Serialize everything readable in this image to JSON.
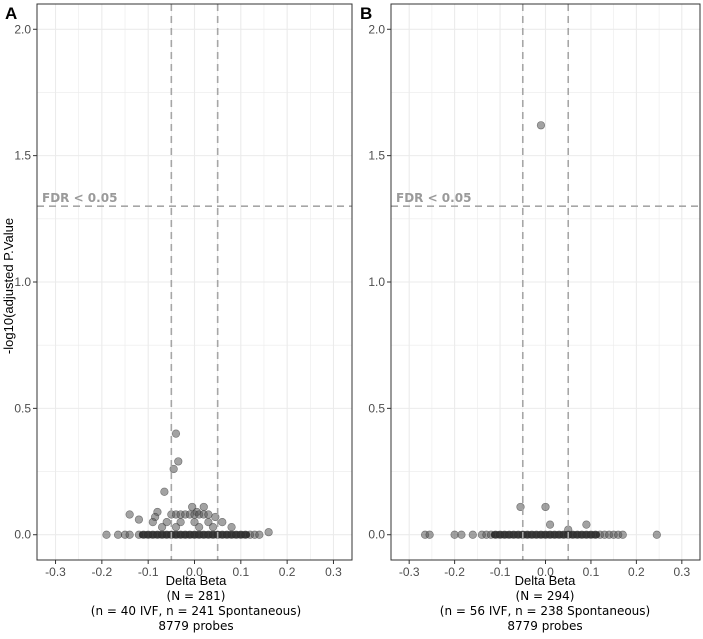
{
  "chart_data": [
    {
      "panel": "A",
      "type": "scatter",
      "xlabel": "Delta Beta",
      "ylabel": "-log10(adjusted P.Value",
      "xlim": [
        -0.34,
        0.34
      ],
      "ylim": [
        -0.1,
        2.1
      ],
      "x_ticks": [
        -0.3,
        -0.2,
        -0.1,
        0.0,
        0.1,
        0.2,
        0.3
      ],
      "x_tick_labels": [
        "-0.3",
        "-0.2",
        "-0.1",
        "0.0",
        "0.1",
        "0.2",
        "0.3"
      ],
      "y_ticks": [
        0.0,
        0.5,
        1.0,
        1.5,
        2.0
      ],
      "y_tick_labels": [
        "0.0",
        "0.5",
        "1.0",
        "1.5",
        "2.0"
      ],
      "fdr_threshold": 1.3,
      "fdr_label": "FDR < 0.05",
      "vlines": [
        -0.05,
        0.05
      ],
      "grid": true,
      "caption": [
        "(N = 281)",
        "(n = 40 IVF, n = 241 Spontaneous)",
        "8779 probes"
      ],
      "points": [
        {
          "x": -0.04,
          "y": 0.4
        },
        {
          "x": -0.035,
          "y": 0.29
        },
        {
          "x": -0.045,
          "y": 0.26
        },
        {
          "x": -0.065,
          "y": 0.17
        },
        {
          "x": -0.005,
          "y": 0.11
        },
        {
          "x": 0.02,
          "y": 0.11
        },
        {
          "x": -0.08,
          "y": 0.09
        },
        {
          "x": 0.005,
          "y": 0.09
        },
        {
          "x": -0.14,
          "y": 0.08
        },
        {
          "x": -0.12,
          "y": 0.06
        },
        {
          "x": -0.085,
          "y": 0.07
        },
        {
          "x": 0.045,
          "y": 0.07
        },
        {
          "x": -0.05,
          "y": 0.08
        },
        {
          "x": -0.04,
          "y": 0.08
        },
        {
          "x": -0.03,
          "y": 0.08
        },
        {
          "x": -0.02,
          "y": 0.08
        },
        {
          "x": -0.01,
          "y": 0.08
        },
        {
          "x": 0.0,
          "y": 0.08
        },
        {
          "x": 0.01,
          "y": 0.08
        },
        {
          "x": 0.02,
          "y": 0.08
        },
        {
          "x": 0.03,
          "y": 0.08
        },
        {
          "x": -0.09,
          "y": 0.05
        },
        {
          "x": -0.06,
          "y": 0.05
        },
        {
          "x": -0.03,
          "y": 0.05
        },
        {
          "x": 0.0,
          "y": 0.05
        },
        {
          "x": 0.03,
          "y": 0.05
        },
        {
          "x": 0.06,
          "y": 0.05
        },
        {
          "x": -0.07,
          "y": 0.03
        },
        {
          "x": -0.04,
          "y": 0.03
        },
        {
          "x": 0.01,
          "y": 0.03
        },
        {
          "x": 0.04,
          "y": 0.03
        },
        {
          "x": 0.08,
          "y": 0.03
        },
        {
          "x": -0.19,
          "y": 0.0
        },
        {
          "x": -0.165,
          "y": 0.0
        },
        {
          "x": -0.15,
          "y": 0.0
        },
        {
          "x": -0.14,
          "y": 0.0
        },
        {
          "x": -0.12,
          "y": 0.0
        },
        {
          "x": -0.11,
          "y": 0.0
        },
        {
          "x": -0.1,
          "y": 0.0
        },
        {
          "x": -0.09,
          "y": 0.0
        },
        {
          "x": -0.08,
          "y": 0.0
        },
        {
          "x": -0.07,
          "y": 0.0
        },
        {
          "x": -0.06,
          "y": 0.0
        },
        {
          "x": -0.05,
          "y": 0.0
        },
        {
          "x": -0.04,
          "y": 0.0
        },
        {
          "x": -0.03,
          "y": 0.0
        },
        {
          "x": -0.02,
          "y": 0.0
        },
        {
          "x": -0.01,
          "y": 0.0
        },
        {
          "x": 0.0,
          "y": 0.0
        },
        {
          "x": 0.01,
          "y": 0.0
        },
        {
          "x": 0.02,
          "y": 0.0
        },
        {
          "x": 0.03,
          "y": 0.0
        },
        {
          "x": 0.04,
          "y": 0.0
        },
        {
          "x": 0.05,
          "y": 0.0
        },
        {
          "x": 0.06,
          "y": 0.0
        },
        {
          "x": 0.07,
          "y": 0.0
        },
        {
          "x": 0.08,
          "y": 0.0
        },
        {
          "x": 0.09,
          "y": 0.0
        },
        {
          "x": 0.1,
          "y": 0.0
        },
        {
          "x": 0.11,
          "y": 0.0
        },
        {
          "x": 0.12,
          "y": 0.0
        },
        {
          "x": 0.13,
          "y": 0.0
        },
        {
          "x": 0.14,
          "y": 0.0
        },
        {
          "x": 0.16,
          "y": 0.01
        }
      ]
    },
    {
      "panel": "B",
      "type": "scatter",
      "xlabel": "Delta Beta",
      "ylabel": "",
      "xlim": [
        -0.34,
        0.34
      ],
      "ylim": [
        -0.1,
        2.1
      ],
      "x_ticks": [
        -0.3,
        -0.2,
        -0.1,
        0.0,
        0.1,
        0.2,
        0.3
      ],
      "x_tick_labels": [
        "-0.3",
        "-0.2",
        "-0.1",
        "0.0",
        "0.1",
        "0.2",
        "0.3"
      ],
      "y_ticks": [
        0.0,
        0.5,
        1.0,
        1.5,
        2.0
      ],
      "y_tick_labels": [
        "0.0",
        "0.5",
        "1.0",
        "1.5",
        "2.0"
      ],
      "fdr_threshold": 1.3,
      "fdr_label": "FDR < 0.05",
      "vlines": [
        -0.05,
        0.05
      ],
      "grid": true,
      "caption": [
        "(N = 294)",
        "(n = 56 IVF, n = 238 Spontaneous)",
        "8779 probes"
      ],
      "points": [
        {
          "x": -0.01,
          "y": 1.62
        },
        {
          "x": -0.055,
          "y": 0.11
        },
        {
          "x": 0.0,
          "y": 0.11
        },
        {
          "x": 0.01,
          "y": 0.04
        },
        {
          "x": 0.09,
          "y": 0.04
        },
        {
          "x": 0.05,
          "y": 0.02
        },
        {
          "x": -0.265,
          "y": 0.0
        },
        {
          "x": -0.255,
          "y": 0.0
        },
        {
          "x": -0.2,
          "y": 0.0
        },
        {
          "x": -0.185,
          "y": 0.0
        },
        {
          "x": -0.16,
          "y": 0.0
        },
        {
          "x": -0.14,
          "y": 0.0
        },
        {
          "x": -0.13,
          "y": 0.0
        },
        {
          "x": -0.12,
          "y": 0.0
        },
        {
          "x": -0.11,
          "y": 0.0
        },
        {
          "x": -0.1,
          "y": 0.0
        },
        {
          "x": -0.09,
          "y": 0.0
        },
        {
          "x": -0.08,
          "y": 0.0
        },
        {
          "x": -0.07,
          "y": 0.0
        },
        {
          "x": -0.06,
          "y": 0.0
        },
        {
          "x": -0.05,
          "y": 0.0
        },
        {
          "x": -0.04,
          "y": 0.0
        },
        {
          "x": -0.03,
          "y": 0.0
        },
        {
          "x": -0.02,
          "y": 0.0
        },
        {
          "x": -0.01,
          "y": 0.0
        },
        {
          "x": 0.0,
          "y": 0.0
        },
        {
          "x": 0.01,
          "y": 0.0
        },
        {
          "x": 0.02,
          "y": 0.0
        },
        {
          "x": 0.03,
          "y": 0.0
        },
        {
          "x": 0.04,
          "y": 0.0
        },
        {
          "x": 0.05,
          "y": 0.0
        },
        {
          "x": 0.06,
          "y": 0.0
        },
        {
          "x": 0.07,
          "y": 0.0
        },
        {
          "x": 0.08,
          "y": 0.0
        },
        {
          "x": 0.09,
          "y": 0.0
        },
        {
          "x": 0.1,
          "y": 0.0
        },
        {
          "x": 0.11,
          "y": 0.0
        },
        {
          "x": 0.12,
          "y": 0.0
        },
        {
          "x": 0.13,
          "y": 0.0
        },
        {
          "x": 0.14,
          "y": 0.0
        },
        {
          "x": 0.15,
          "y": 0.0
        },
        {
          "x": 0.16,
          "y": 0.0
        },
        {
          "x": 0.17,
          "y": 0.0
        },
        {
          "x": 0.245,
          "y": 0.0
        }
      ]
    }
  ],
  "colors": {
    "point_fill": "#555555",
    "point_stroke": "#333333",
    "dashed_line": "#a6a6a6",
    "grid": "#ebebeb",
    "panel_border": "#333333"
  }
}
